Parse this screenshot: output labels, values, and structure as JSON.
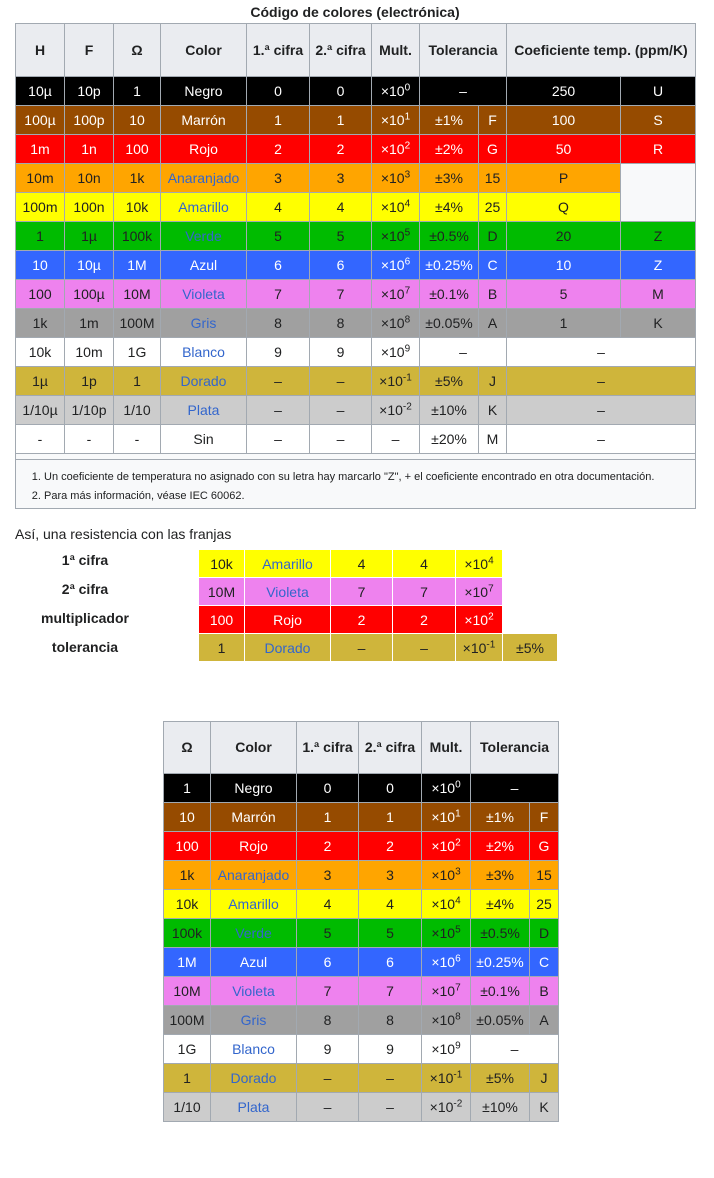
{
  "caption": "Código de colores (electrónica)",
  "headers": {
    "H": "H",
    "F": "F",
    "O": "Ω",
    "color": "Color",
    "d1": "1.ª cifra",
    "d2": "2.ª cifra",
    "mult": "Mult.",
    "tol": "Tolerancia",
    "tc": "Coeficiente temp. (ppm/K)"
  },
  "rows": [
    {
      "H": "10µ",
      "F": "10p",
      "O": "1",
      "name": "Negro",
      "d1": "0",
      "d2": "0",
      "mb": "×10",
      "me": "0",
      "tol": "–",
      "tl": "",
      "tc": "250",
      "tcl": "U",
      "bg": "#000000",
      "fg": "#ffffff",
      "link": false
    },
    {
      "H": "100µ",
      "F": "100p",
      "O": "10",
      "name": "Marrón",
      "d1": "1",
      "d2": "1",
      "mb": "×10",
      "me": "1",
      "tol": "±1%",
      "tl": "F",
      "tc": "100",
      "tcl": "S",
      "bg": "#964b00",
      "fg": "#ffffff",
      "link": false
    },
    {
      "H": "1m",
      "F": "1n",
      "O": "100",
      "name": "Rojo",
      "d1": "2",
      "d2": "2",
      "mb": "×10",
      "me": "2",
      "tol": "±2%",
      "tl": "G",
      "tc": "50",
      "tcl": "R",
      "bg": "#ff0000",
      "fg": "#ffffff",
      "link": false
    },
    {
      "H": "10m",
      "F": "10n",
      "O": "1k",
      "name": "Anaranjado",
      "d1": "3",
      "d2": "3",
      "mb": "×10",
      "me": "3",
      "tol": "±3%",
      "tl": "15",
      "tc": "P",
      "tcl": "",
      "bg": "#ffa500",
      "fg": "#202122",
      "link": true
    },
    {
      "H": "100m",
      "F": "100n",
      "O": "10k",
      "name": "Amarillo",
      "d1": "4",
      "d2": "4",
      "mb": "×10",
      "me": "4",
      "tol": "±4%",
      "tl": "25",
      "tc": "Q",
      "tcl": "",
      "bg": "#ffff00",
      "fg": "#202122",
      "link": true
    },
    {
      "H": "1",
      "F": "1µ",
      "O": "100k",
      "name": "Verde",
      "d1": "5",
      "d2": "5",
      "mb": "×10",
      "me": "5",
      "tol": "±0.5%",
      "tl": "D",
      "tc": "20",
      "tcl": "Z",
      "bg": "#00bb00",
      "fg": "#202122",
      "link": true
    },
    {
      "H": "10",
      "F": "10µ",
      "O": "1M",
      "name": "Azul",
      "d1": "6",
      "d2": "6",
      "mb": "×10",
      "me": "6",
      "tol": "±0.25%",
      "tl": "C",
      "tc": "10",
      "tcl": "Z",
      "bg": "#3366ff",
      "fg": "#ffffff",
      "link": false
    },
    {
      "H": "100",
      "F": "100µ",
      "O": "10M",
      "name": "Violeta",
      "d1": "7",
      "d2": "7",
      "mb": "×10",
      "me": "7",
      "tol": "±0.1%",
      "tl": "B",
      "tc": "5",
      "tcl": "M",
      "bg": "#ee82ee",
      "fg": "#202122",
      "link": true
    },
    {
      "H": "1k",
      "F": "1m",
      "O": "100M",
      "name": "Gris",
      "d1": "8",
      "d2": "8",
      "mb": "×10",
      "me": "8",
      "tol": "±0.05%",
      "tl": "A",
      "tc": "1",
      "tcl": "K",
      "bg": "#a0a0a0",
      "fg": "#202122",
      "link": true
    },
    {
      "H": "10k",
      "F": "10m",
      "O": "1G",
      "name": "Blanco",
      "d1": "9",
      "d2": "9",
      "mb": "×10",
      "me": "9",
      "tol": "–",
      "tl": "",
      "tc": "–",
      "tcl": "",
      "bg": "#ffffff",
      "fg": "#202122",
      "link": true
    },
    {
      "H": "1µ",
      "F": "1p",
      "O": "1",
      "name": "Dorado",
      "d1": "–",
      "d2": "–",
      "mb": "×10",
      "me": "-1",
      "tol": "±5%",
      "tl": "J",
      "tc": "–",
      "tcl": "",
      "bg": "#cfb53b",
      "fg": "#202122",
      "link": true
    },
    {
      "H": "1/10µ",
      "F": "1/10p",
      "O": "1/10",
      "name": "Plata",
      "d1": "–",
      "d2": "–",
      "mb": "×10",
      "me": "-2",
      "tol": "±10%",
      "tl": "K",
      "tc": "–",
      "tcl": "",
      "bg": "#cccccc",
      "fg": "#202122",
      "link": true
    },
    {
      "H": "-",
      "F": "-",
      "O": "-",
      "name": "Sin",
      "d1": "–",
      "d2": "–",
      "mb": "–",
      "me": "",
      "tol": "±20%",
      "tl": "M",
      "tc": "–",
      "tcl": "",
      "bg": "#ffffff",
      "fg": "#202122",
      "link": false
    }
  ],
  "notes": [
    "Un coeficiente de temperatura no asignado con su letra hay marcarlo \"Z\", + el coeficiente encontrado en otra documentación.",
    "Para más información, véase IEC 60062."
  ],
  "intro": "Así, una resistencia con las franjas",
  "example": [
    {
      "label": "1ª cifra",
      "O": "10k",
      "name": "Amarillo",
      "d1": "4",
      "d2": "4",
      "mb": "×10",
      "me": "4",
      "tol": "",
      "bg": "#ffff00",
      "fg": "#202122",
      "link": true
    },
    {
      "label": "2ª cifra",
      "O": "10M",
      "name": "Violeta",
      "d1": "7",
      "d2": "7",
      "mb": "×10",
      "me": "7",
      "tol": "",
      "bg": "#ee82ee",
      "fg": "#202122",
      "link": true
    },
    {
      "label": "multiplicador",
      "O": "100",
      "name": "Rojo",
      "d1": "2",
      "d2": "2",
      "mb": "×10",
      "me": "2",
      "tol": "",
      "bg": "#ff0000",
      "fg": "#ffffff",
      "link": false
    },
    {
      "label": "tolerancia",
      "O": "1",
      "name": "Dorado",
      "d1": "–",
      "d2": "–",
      "mb": "×10",
      "me": "-1",
      "tol": "±5%",
      "bg": "#cfb53b",
      "fg": "#202122",
      "link": true
    }
  ]
}
